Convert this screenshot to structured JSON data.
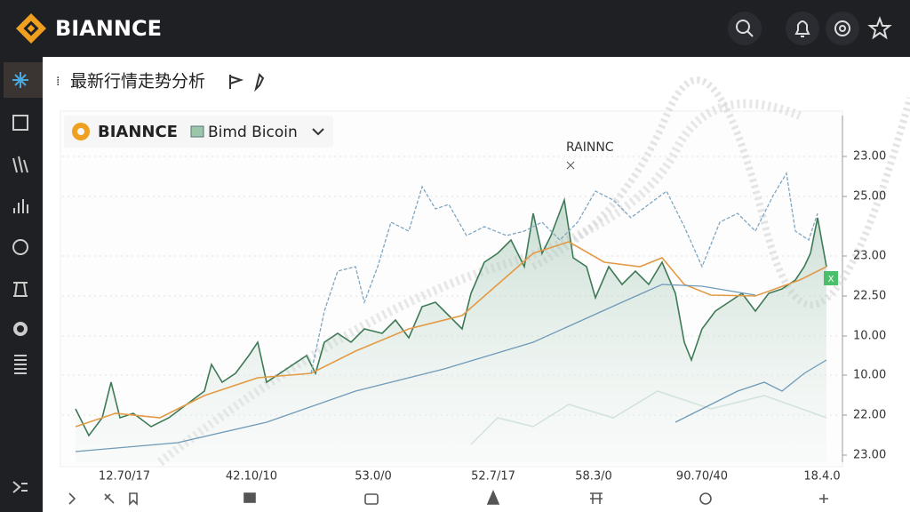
{
  "header": {
    "brand": "BIANNCE"
  },
  "page": {
    "title": "最新行情走势分析"
  },
  "chart": {
    "brand": "BIANNCE",
    "symbol": "Bimd Bicoin",
    "annotation": "RAINNC",
    "badge": "X",
    "y_labels": [
      "23.00",
      "25.00",
      "23.00",
      "22.50",
      "10.00",
      "10.00",
      "22.00",
      "23.00"
    ],
    "x_labels": [
      "12.70/17",
      "42.10/10",
      "53.0/0",
      "52.7/17",
      "58.3/0",
      "90.70/40",
      "18.4.0"
    ]
  }
}
